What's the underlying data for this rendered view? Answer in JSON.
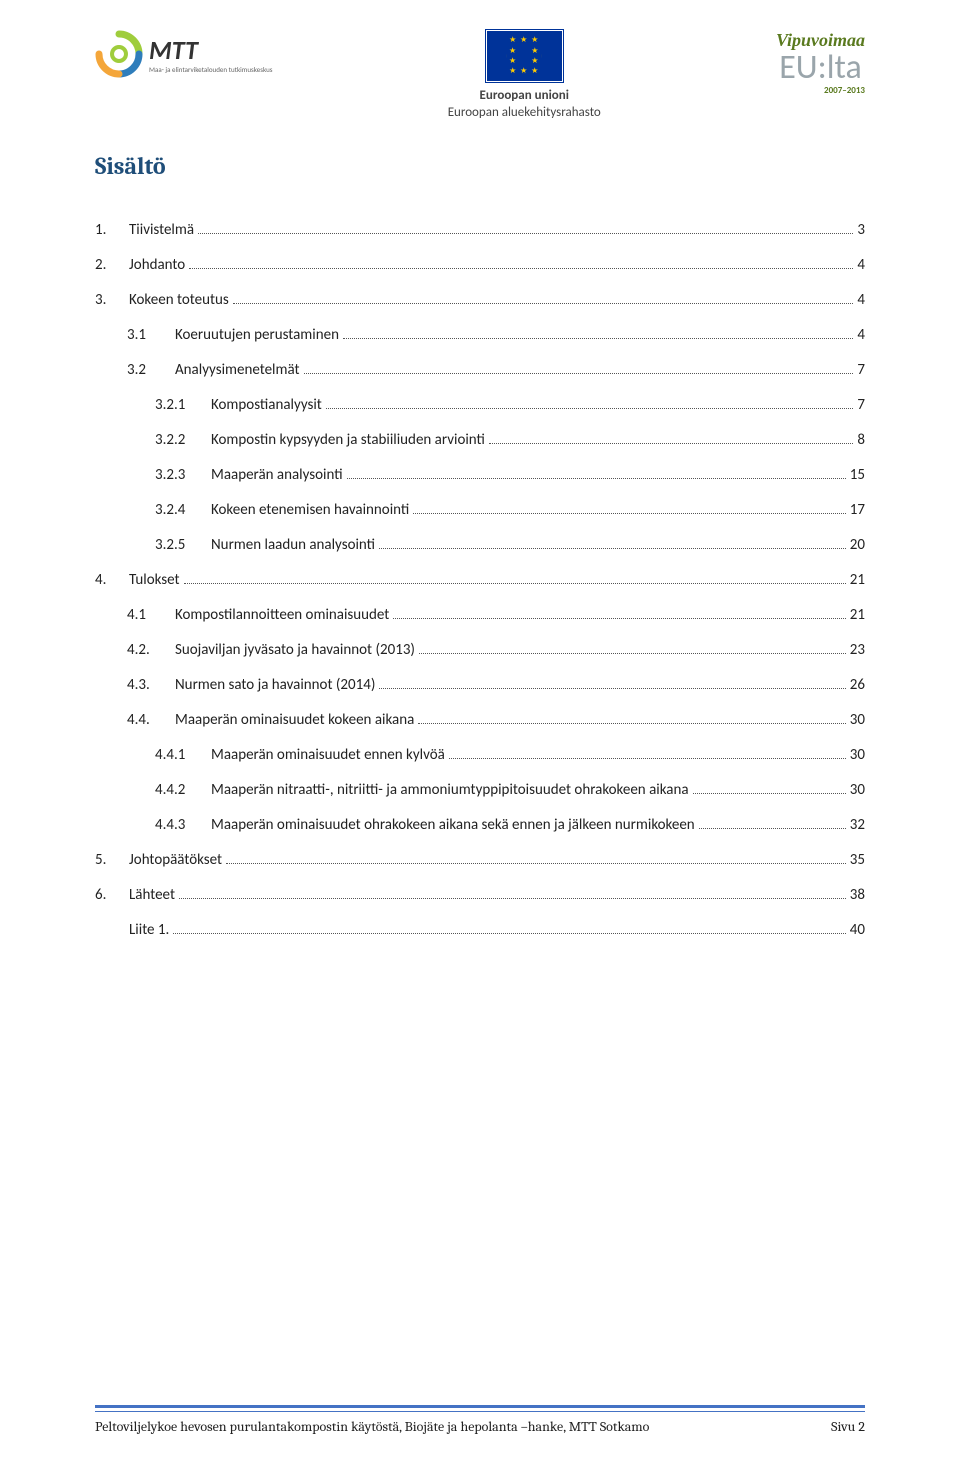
{
  "header": {
    "mtt": {
      "name": "MTT",
      "sub": "Maa- ja elintarviketalouden tutkimuskeskus"
    },
    "eu": {
      "line1": "Euroopan unioni",
      "line2": "Euroopan aluekehitysrahasto"
    },
    "vipu": {
      "line1": "Vipuvoimaa",
      "line2": "EU:lta",
      "line3": "2007–2013"
    }
  },
  "title": "Sisältö",
  "toc": [
    {
      "level": 0,
      "num": "1.",
      "label": "Tiivistelmä",
      "page": "3"
    },
    {
      "level": 0,
      "num": "2.",
      "label": "Johdanto",
      "page": "4"
    },
    {
      "level": 0,
      "num": "3.",
      "label": "Kokeen toteutus",
      "page": "4"
    },
    {
      "level": 1,
      "num": "3.1",
      "label": "Koeruutujen perustaminen",
      "page": "4"
    },
    {
      "level": 1,
      "num": "3.2",
      "label": "Analyysimenetelmät",
      "page": "7"
    },
    {
      "level": 2,
      "num": "3.2.1",
      "label": "Kompostianalyysit",
      "page": "7"
    },
    {
      "level": 2,
      "num": "3.2.2",
      "label": "Kompostin kypsyyden ja stabiiliuden arviointi",
      "page": "8"
    },
    {
      "level": 2,
      "num": "3.2.3",
      "label": "Maaperän analysointi",
      "page": "15"
    },
    {
      "level": 2,
      "num": "3.2.4",
      "label": "Kokeen etenemisen havainnointi",
      "page": "17"
    },
    {
      "level": 2,
      "num": "3.2.5",
      "label": "Nurmen laadun analysointi",
      "page": "20"
    },
    {
      "level": 0,
      "num": "4.",
      "label": "Tulokset",
      "page": "21"
    },
    {
      "level": 1,
      "num": "4.1",
      "label": "Kompostilannoitteen ominaisuudet",
      "page": "21"
    },
    {
      "level": 1,
      "num": "4.2.",
      "label": "Suojaviljan jyväsato ja havainnot (2013)",
      "page": "23"
    },
    {
      "level": 1,
      "num": "4.3.",
      "label": "Nurmen sato ja havainnot (2014)",
      "page": "26"
    },
    {
      "level": 1,
      "num": "4.4.",
      "label": "Maaperän ominaisuudet kokeen aikana",
      "page": "30"
    },
    {
      "level": 2,
      "num": "4.4.1",
      "label": "Maaperän ominaisuudet ennen kylvöä",
      "page": "30"
    },
    {
      "level": 2,
      "num": "4.4.2",
      "label": "Maaperän nitraatti-, nitriitti- ja ammoniumtyppipitoisuudet ohrakokeen aikana",
      "page": "30"
    },
    {
      "level": 2,
      "num": "4.4.3",
      "label": "Maaperän ominaisuudet ohrakokeen aikana sekä ennen ja jälkeen nurmikokeen",
      "page": "32"
    },
    {
      "level": 0,
      "num": "5.",
      "label": "Johtopäätökset",
      "page": "35"
    },
    {
      "level": 0,
      "num": "6.",
      "label": "Lähteet",
      "page": "38"
    },
    {
      "level": 0,
      "num": "",
      "label": "Liite 1. ",
      "page": "40"
    }
  ],
  "footer": {
    "left": "Peltoviljelykoe hevosen purulantakompostin käytöstä, Biojäte ja hepolanta –hanke, MTT Sotkamo",
    "right": "Sivu 2"
  },
  "colors": {
    "title": "#1f4e79",
    "footer_rule": "#4472c4",
    "vipu_green": "#5a7a1f",
    "vipu_gray": "#9aa5ab",
    "eu_blue": "#003399",
    "eu_gold": "#ffcc00"
  }
}
